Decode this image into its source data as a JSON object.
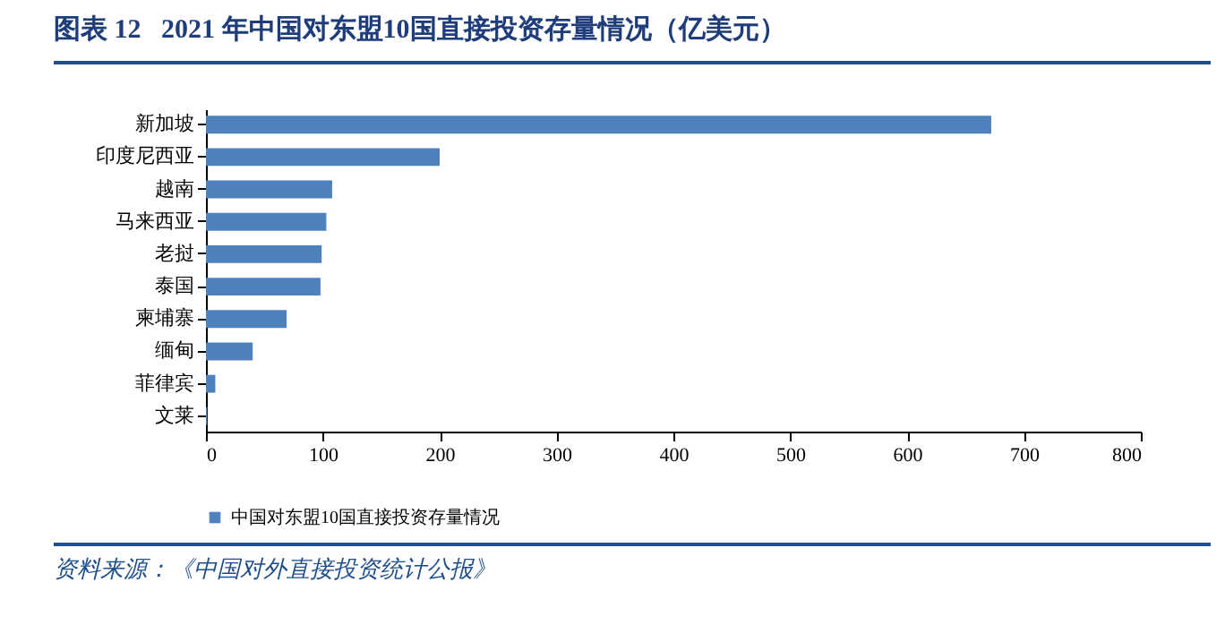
{
  "chart_data": {
    "type": "bar",
    "orientation": "horizontal",
    "title": "图表 12   2021 年中国对东盟10国直接投资存量情况（亿美元）",
    "categories": [
      "新加坡",
      "印度尼西亚",
      "越南",
      "马来西亚",
      "老挝",
      "泰国",
      "柬埔寨",
      "缅甸",
      "菲律宾",
      "文莱"
    ],
    "series": [
      {
        "name": "中国对东盟10国直接投资存量情况",
        "color": "#4f81bd",
        "values": [
          672,
          200,
          108,
          103,
          99,
          98,
          69,
          40,
          8,
          1
        ]
      }
    ],
    "xlim": [
      0,
      800
    ],
    "xticks": [
      0,
      100,
      200,
      300,
      400,
      500,
      600,
      700,
      800
    ],
    "grid": false,
    "legend": "bottom",
    "annotations": [
      "资料来源：《中国对外直接投资统计公报》"
    ]
  }
}
